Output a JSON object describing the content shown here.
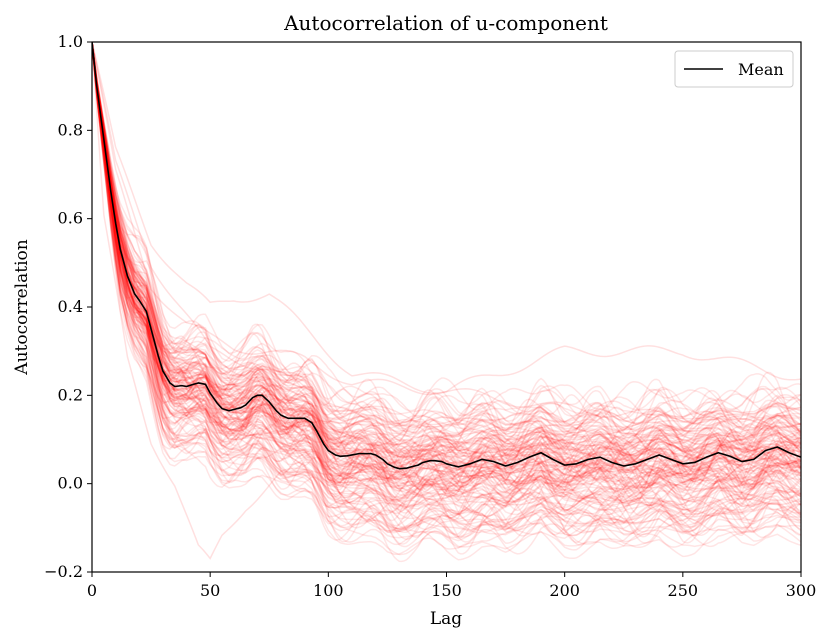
{
  "chart_data": {
    "type": "line",
    "title": "Autocorrelation of u-component",
    "xlabel": "Lag",
    "ylabel": "Autocorrelation",
    "xlim": [
      0,
      300
    ],
    "ylim": [
      -0.2,
      1.0
    ],
    "xticks": [
      0,
      50,
      100,
      150,
      200,
      250,
      300
    ],
    "yticks": [
      -0.2,
      0.0,
      0.2,
      0.4,
      0.6,
      0.8,
      1.0
    ],
    "xtick_labels": [
      "0",
      "50",
      "100",
      "150",
      "200",
      "250",
      "300"
    ],
    "ytick_labels": [
      "−0.2",
      "0.0",
      "0.2",
      "0.4",
      "0.6",
      "0.8",
      "1.0"
    ],
    "grid": false,
    "legend": {
      "location": "upper right",
      "entries": [
        "Mean"
      ]
    },
    "mean_series": {
      "name": "Mean",
      "color": "#000000",
      "x": [
        0,
        2,
        5,
        8,
        10,
        12,
        15,
        18,
        20,
        23,
        25,
        28,
        30,
        33,
        35,
        38,
        40,
        43,
        45,
        48,
        50,
        53,
        55,
        58,
        60,
        63,
        65,
        68,
        70,
        72,
        75,
        78,
        80,
        83,
        85,
        88,
        90,
        93,
        95,
        98,
        100,
        103,
        105,
        108,
        110,
        113,
        115,
        118,
        120,
        123,
        125,
        128,
        130,
        133,
        135,
        138,
        140,
        143,
        145,
        148,
        150,
        155,
        160,
        165,
        170,
        175,
        180,
        185,
        190,
        195,
        200,
        205,
        210,
        215,
        220,
        225,
        230,
        235,
        240,
        245,
        250,
        255,
        260,
        265,
        270,
        275,
        280,
        285,
        290,
        295,
        300
      ],
      "y": [
        1.0,
        0.9,
        0.78,
        0.66,
        0.59,
        0.53,
        0.47,
        0.43,
        0.415,
        0.39,
        0.35,
        0.29,
        0.255,
        0.228,
        0.22,
        0.222,
        0.22,
        0.225,
        0.228,
        0.225,
        0.205,
        0.182,
        0.17,
        0.165,
        0.168,
        0.172,
        0.178,
        0.195,
        0.2,
        0.2,
        0.185,
        0.165,
        0.155,
        0.148,
        0.148,
        0.148,
        0.148,
        0.138,
        0.12,
        0.09,
        0.075,
        0.065,
        0.062,
        0.063,
        0.065,
        0.068,
        0.068,
        0.068,
        0.065,
        0.055,
        0.045,
        0.037,
        0.034,
        0.035,
        0.038,
        0.042,
        0.048,
        0.052,
        0.052,
        0.05,
        0.045,
        0.038,
        0.045,
        0.055,
        0.05,
        0.04,
        0.048,
        0.06,
        0.07,
        0.055,
        0.042,
        0.045,
        0.055,
        0.06,
        0.048,
        0.04,
        0.045,
        0.055,
        0.065,
        0.055,
        0.045,
        0.048,
        0.06,
        0.07,
        0.062,
        0.05,
        0.055,
        0.075,
        0.083,
        0.07,
        0.06
      ]
    },
    "individual_series_color": "#ff0000",
    "individual_series_opacity": 0.1,
    "individual_series_count": 150,
    "individual_series": [
      {
        "x": [
          0,
          10,
          25,
          40,
          50,
          60,
          75,
          90,
          110,
          150,
          200,
          250,
          300
        ],
        "y": [
          1.0,
          0.75,
          0.55,
          0.45,
          0.4,
          0.42,
          0.43,
          0.35,
          0.25,
          0.21,
          0.3,
          0.3,
          0.24
        ]
      },
      {
        "x": [
          0,
          10,
          25,
          40,
          50,
          60,
          75,
          90,
          110,
          150,
          200,
          250,
          300
        ],
        "y": [
          1.0,
          0.7,
          0.45,
          0.36,
          0.33,
          0.31,
          0.3,
          0.28,
          0.23,
          0.21,
          0.17,
          0.15,
          0.14
        ]
      },
      {
        "x": [
          0,
          5,
          15,
          25,
          35,
          45,
          50,
          55,
          65,
          80,
          100,
          150,
          200,
          250,
          300
        ],
        "y": [
          1.0,
          0.6,
          0.28,
          0.1,
          0.0,
          -0.15,
          -0.18,
          -0.12,
          -0.05,
          0.02,
          0.03,
          0.02,
          0.05,
          0.02,
          0.06
        ]
      },
      {
        "x": [
          0,
          10,
          25,
          50,
          100,
          130,
          160,
          170,
          200,
          250,
          300
        ],
        "y": [
          1.0,
          0.55,
          0.3,
          0.15,
          0.0,
          -0.05,
          -0.12,
          -0.08,
          -0.03,
          -0.05,
          -0.02
        ]
      },
      {
        "x": [
          0,
          10,
          25,
          50,
          75,
          100,
          150,
          200,
          250,
          300
        ],
        "y": [
          1.0,
          0.72,
          0.5,
          0.3,
          0.26,
          0.18,
          0.14,
          0.12,
          0.13,
          0.14
        ]
      },
      {
        "x": [
          0,
          10,
          25,
          50,
          75,
          100,
          150,
          200,
          250,
          300
        ],
        "y": [
          1.0,
          0.6,
          0.35,
          0.17,
          0.1,
          0.02,
          -0.03,
          -0.04,
          -0.06,
          -0.03
        ]
      }
    ]
  }
}
